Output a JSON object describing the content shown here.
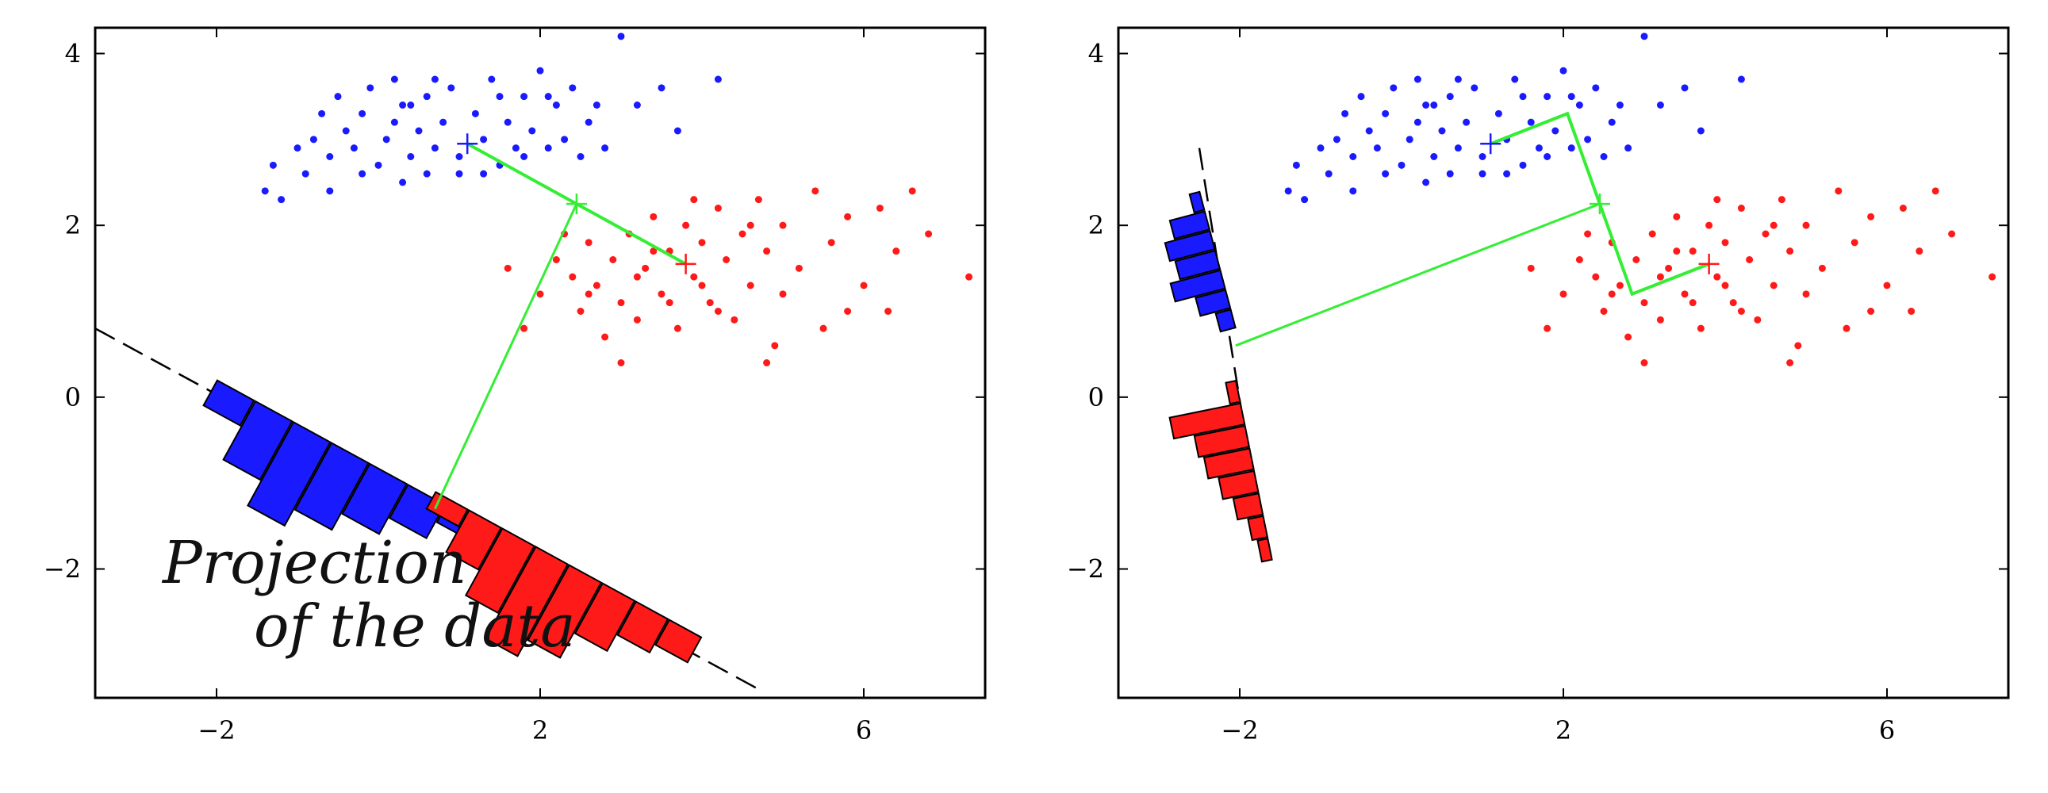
{
  "chart_data": [
    {
      "type": "scatter",
      "panel": "left",
      "xlim": [
        -3.5,
        7.5
      ],
      "ylim": [
        -3.5,
        4.3
      ],
      "xticks": [
        -2,
        2,
        6
      ],
      "yticks": [
        -2,
        0,
        2,
        4
      ],
      "xtick_labels": [
        "−2",
        "2",
        "6"
      ],
      "ytick_labels": [
        "−2",
        "0",
        "2",
        "4"
      ],
      "grid": false,
      "series": [
        {
          "class": "blue",
          "color": "#1a1aff",
          "mean": [
            1.1,
            2.95
          ],
          "points": [
            [
              -1.4,
              2.4
            ],
            [
              -1.2,
              2.3
            ],
            [
              -1.3,
              2.7
            ],
            [
              -1.0,
              2.9
            ],
            [
              -0.9,
              2.6
            ],
            [
              -0.8,
              3.0
            ],
            [
              -0.7,
              3.3
            ],
            [
              -0.6,
              2.8
            ],
            [
              -0.5,
              3.5
            ],
            [
              -0.4,
              3.1
            ],
            [
              -0.3,
              2.9
            ],
            [
              -0.2,
              3.3
            ],
            [
              -0.1,
              3.6
            ],
            [
              0.0,
              2.7
            ],
            [
              0.1,
              3.0
            ],
            [
              0.2,
              3.2
            ],
            [
              0.3,
              3.4
            ],
            [
              0.4,
              2.8
            ],
            [
              0.5,
              3.1
            ],
            [
              0.6,
              3.5
            ],
            [
              0.7,
              2.9
            ],
            [
              0.8,
              3.2
            ],
            [
              0.9,
              3.6
            ],
            [
              1.0,
              2.8
            ],
            [
              1.2,
              3.3
            ],
            [
              1.3,
              3.0
            ],
            [
              1.4,
              3.7
            ],
            [
              1.5,
              2.7
            ],
            [
              1.6,
              3.2
            ],
            [
              1.7,
              2.9
            ],
            [
              1.8,
              3.5
            ],
            [
              1.9,
              3.1
            ],
            [
              2.0,
              3.8
            ],
            [
              2.1,
              2.9
            ],
            [
              2.2,
              3.4
            ],
            [
              2.3,
              3.0
            ],
            [
              2.4,
              3.6
            ],
            [
              2.5,
              2.8
            ],
            [
              2.6,
              3.2
            ],
            [
              2.8,
              2.9
            ],
            [
              3.0,
              4.2
            ],
            [
              3.2,
              3.4
            ],
            [
              3.5,
              3.6
            ],
            [
              3.7,
              3.1
            ],
            [
              4.2,
              3.7
            ],
            [
              0.3,
              2.5
            ],
            [
              0.6,
              2.6
            ],
            [
              1.0,
              2.6
            ],
            [
              -0.6,
              2.4
            ],
            [
              0.2,
              3.7
            ],
            [
              0.7,
              3.7
            ],
            [
              1.5,
              3.5
            ],
            [
              2.1,
              3.5
            ],
            [
              1.3,
              2.6
            ],
            [
              -0.2,
              2.6
            ],
            [
              0.4,
              3.4
            ],
            [
              1.8,
              2.8
            ],
            [
              2.7,
              3.4
            ]
          ]
        },
        {
          "class": "red",
          "color": "#ff1a1a",
          "mean": [
            3.8,
            1.55
          ],
          "points": [
            [
              1.6,
              1.5
            ],
            [
              1.8,
              0.8
            ],
            [
              2.0,
              1.2
            ],
            [
              2.2,
              1.6
            ],
            [
              2.4,
              1.4
            ],
            [
              2.5,
              1.0
            ],
            [
              2.6,
              1.8
            ],
            [
              2.7,
              1.3
            ],
            [
              2.8,
              0.7
            ],
            [
              2.9,
              1.6
            ],
            [
              3.0,
              1.1
            ],
            [
              3.1,
              1.9
            ],
            [
              3.2,
              0.9
            ],
            [
              3.3,
              1.5
            ],
            [
              3.4,
              2.1
            ],
            [
              3.5,
              1.2
            ],
            [
              3.6,
              1.7
            ],
            [
              3.7,
              0.8
            ],
            [
              3.8,
              2.0
            ],
            [
              3.9,
              1.4
            ],
            [
              4.0,
              1.8
            ],
            [
              4.1,
              1.1
            ],
            [
              4.2,
              2.2
            ],
            [
              4.3,
              1.6
            ],
            [
              4.4,
              0.9
            ],
            [
              4.5,
              1.9
            ],
            [
              4.6,
              1.3
            ],
            [
              4.7,
              2.3
            ],
            [
              4.8,
              1.7
            ],
            [
              4.9,
              0.6
            ],
            [
              5.0,
              2.0
            ],
            [
              5.2,
              1.5
            ],
            [
              5.4,
              2.4
            ],
            [
              5.6,
              1.8
            ],
            [
              5.8,
              2.1
            ],
            [
              6.0,
              1.3
            ],
            [
              6.2,
              2.2
            ],
            [
              6.4,
              1.7
            ],
            [
              6.6,
              2.4
            ],
            [
              6.8,
              1.9
            ],
            [
              7.3,
              1.4
            ],
            [
              3.0,
              0.4
            ],
            [
              4.8,
              0.4
            ],
            [
              3.4,
              1.7
            ],
            [
              4.0,
              1.3
            ],
            [
              3.6,
              1.1
            ],
            [
              2.3,
              1.9
            ],
            [
              5.0,
              1.2
            ],
            [
              4.2,
              1.0
            ],
            [
              3.2,
              1.4
            ],
            [
              5.8,
              1.0
            ],
            [
              6.3,
              1.0
            ],
            [
              2.6,
              1.2
            ],
            [
              4.6,
              2.0
            ],
            [
              3.9,
              2.3
            ],
            [
              5.5,
              0.8
            ]
          ]
        }
      ],
      "annotations": {
        "overall_mean": [
          2.45,
          2.25
        ],
        "projection_line": {
          "from": [
            -3.5,
            0.8
          ],
          "to": [
            4.7,
            -3.4
          ],
          "style": "dashed"
        },
        "green_path": [
          [
            1.1,
            2.95
          ],
          [
            2.45,
            2.25
          ],
          [
            3.8,
            1.55
          ]
        ],
        "green_projection": [
          [
            2.45,
            2.25
          ],
          [
            0.7,
            -1.3
          ]
        ],
        "histogram_blue": {
          "axis_start": [
            -2.0,
            0.2
          ],
          "axis_end": [
            1.3,
            -1.5
          ],
          "heights": [
            0.3,
            0.7,
            1.0,
            0.8,
            0.6,
            0.4,
            0.2
          ]
        },
        "histogram_red": {
          "axis_start": [
            0.7,
            -1.1
          ],
          "axis_end": [
            4.0,
            -2.8
          ],
          "heights": [
            0.2,
            0.5,
            0.8,
            1.1,
            0.9,
            0.6,
            0.4,
            0.3
          ]
        },
        "handwritten_note": [
          "Projection",
          "of the data"
        ]
      }
    },
    {
      "type": "scatter",
      "panel": "right",
      "xlim": [
        -3.5,
        7.5
      ],
      "ylim": [
        -3.5,
        4.3
      ],
      "xticks": [
        -2,
        2,
        6
      ],
      "yticks": [
        -2,
        0,
        2,
        4
      ],
      "xtick_labels": [
        "−2",
        "2",
        "6"
      ],
      "ytick_labels": [
        "−2",
        "0",
        "2",
        "4"
      ],
      "grid": false,
      "annotations": {
        "projection_line": {
          "from": [
            -2.5,
            2.9
          ],
          "to": [
            -1.7,
            -1.8
          ],
          "style": "dashed"
        },
        "green_path": [
          [
            1.1,
            2.95
          ],
          [
            2.05,
            3.3
          ],
          [
            2.45,
            2.25
          ],
          [
            2.85,
            1.2
          ],
          [
            3.8,
            1.55
          ]
        ],
        "green_projection": [
          [
            2.45,
            2.25
          ],
          [
            -2.05,
            0.6
          ]
        ],
        "histogram_blue": {
          "axis_start": [
            -2.5,
            2.4
          ],
          "axis_end": [
            -2.05,
            0.8
          ],
          "heights": [
            0.2,
            0.7,
            0.9,
            0.8,
            1.0,
            0.6,
            0.3
          ]
        },
        "histogram_red": {
          "axis_start": [
            -2.05,
            0.2
          ],
          "axis_end": [
            -1.6,
            -1.9
          ],
          "heights": [
            0.2,
            1.4,
            1.0,
            0.9,
            0.7,
            0.5,
            0.3,
            0.2
          ]
        }
      }
    }
  ]
}
